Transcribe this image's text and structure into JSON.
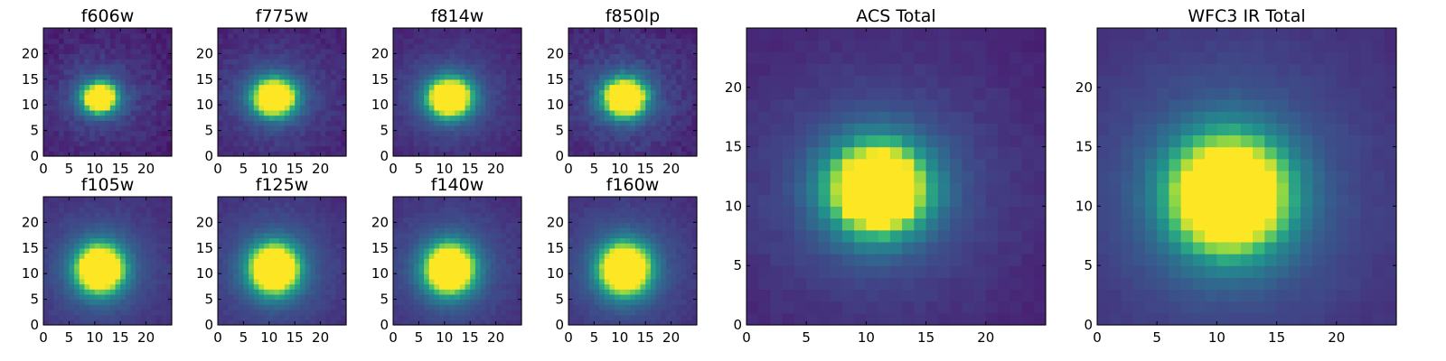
{
  "chart_data": [
    {
      "type": "heatmap",
      "title": "f606w",
      "xticks": [
        0,
        5,
        10,
        15,
        20
      ],
      "yticks": [
        0,
        5,
        10,
        15,
        20
      ],
      "xlim": [
        0,
        25
      ],
      "ylim": [
        0,
        25
      ],
      "grid": false,
      "colormap": "viridis",
      "center": [
        11.0,
        11.5
      ],
      "sigma": [
        2.4,
        2.1
      ],
      "background": 0.1,
      "noise": 0.1
    },
    {
      "type": "heatmap",
      "title": "f775w",
      "xticks": [
        0,
        5,
        10,
        15,
        20
      ],
      "yticks": [
        0,
        5,
        10,
        15,
        20
      ],
      "xlim": [
        0,
        25
      ],
      "ylim": [
        0,
        25
      ],
      "grid": false,
      "colormap": "viridis",
      "center": [
        11.0,
        11.5
      ],
      "sigma": [
        3.0,
        2.6
      ],
      "background": 0.1,
      "noise": 0.08
    },
    {
      "type": "heatmap",
      "title": "f814w",
      "xticks": [
        0,
        5,
        10,
        15,
        20
      ],
      "yticks": [
        0,
        5,
        10,
        15,
        20
      ],
      "xlim": [
        0,
        25
      ],
      "ylim": [
        0,
        25
      ],
      "grid": false,
      "colormap": "viridis",
      "center": [
        11.0,
        11.5
      ],
      "sigma": [
        3.1,
        2.7
      ],
      "background": 0.1,
      "noise": 0.06
    },
    {
      "type": "heatmap",
      "title": "f850lp",
      "xticks": [
        0,
        5,
        10,
        15,
        20
      ],
      "yticks": [
        0,
        5,
        10,
        15,
        20
      ],
      "xlim": [
        0,
        25
      ],
      "ylim": [
        0,
        25
      ],
      "grid": false,
      "colormap": "viridis",
      "center": [
        11.0,
        11.5
      ],
      "sigma": [
        3.0,
        2.7
      ],
      "background": 0.1,
      "noise": 0.1
    },
    {
      "type": "heatmap",
      "title": "f105w",
      "xticks": [
        0,
        5,
        10,
        15,
        20
      ],
      "yticks": [
        0,
        5,
        10,
        15,
        20
      ],
      "xlim": [
        0,
        25
      ],
      "ylim": [
        0,
        25
      ],
      "grid": false,
      "colormap": "viridis",
      "center": [
        11.0,
        11.0
      ],
      "sigma": [
        3.4,
        3.4
      ],
      "background": 0.12,
      "noise": 0.05
    },
    {
      "type": "heatmap",
      "title": "f125w",
      "xticks": [
        0,
        5,
        10,
        15,
        20
      ],
      "yticks": [
        0,
        5,
        10,
        15,
        20
      ],
      "xlim": [
        0,
        25
      ],
      "ylim": [
        0,
        25
      ],
      "grid": false,
      "colormap": "viridis",
      "center": [
        11.0,
        11.0
      ],
      "sigma": [
        3.5,
        3.5
      ],
      "background": 0.12,
      "noise": 0.05
    },
    {
      "type": "heatmap",
      "title": "f140w",
      "xticks": [
        0,
        5,
        10,
        15,
        20
      ],
      "yticks": [
        0,
        5,
        10,
        15,
        20
      ],
      "xlim": [
        0,
        25
      ],
      "ylim": [
        0,
        25
      ],
      "grid": false,
      "colormap": "viridis",
      "center": [
        11.0,
        11.0
      ],
      "sigma": [
        3.5,
        3.5
      ],
      "background": 0.12,
      "noise": 0.05
    },
    {
      "type": "heatmap",
      "title": "f160w",
      "xticks": [
        0,
        5,
        10,
        15,
        20
      ],
      "yticks": [
        0,
        5,
        10,
        15,
        20
      ],
      "xlim": [
        0,
        25
      ],
      "ylim": [
        0,
        25
      ],
      "grid": false,
      "colormap": "viridis",
      "center": [
        11.0,
        11.0
      ],
      "sigma": [
        3.6,
        3.6
      ],
      "background": 0.12,
      "noise": 0.05
    },
    {
      "type": "heatmap",
      "title": "ACS Total",
      "xticks": [
        0,
        5,
        10,
        15,
        20
      ],
      "yticks": [
        0,
        5,
        10,
        15,
        20
      ],
      "xlim": [
        0,
        25
      ],
      "ylim": [
        0,
        25
      ],
      "grid": false,
      "colormap": "viridis",
      "center": [
        11.0,
        11.5
      ],
      "sigma": [
        3.0,
        2.8
      ],
      "background": 0.1,
      "noise": 0.04
    },
    {
      "type": "heatmap",
      "title": "WFC3 IR Total",
      "xticks": [
        0,
        5,
        10,
        15,
        20
      ],
      "yticks": [
        0,
        5,
        10,
        15,
        20
      ],
      "xlim": [
        0,
        25
      ],
      "ylim": [
        0,
        25
      ],
      "grid": false,
      "colormap": "viridis",
      "center": [
        11.0,
        11.0
      ],
      "sigma": [
        3.6,
        3.6
      ],
      "background": 0.12,
      "noise": 0.03
    }
  ]
}
